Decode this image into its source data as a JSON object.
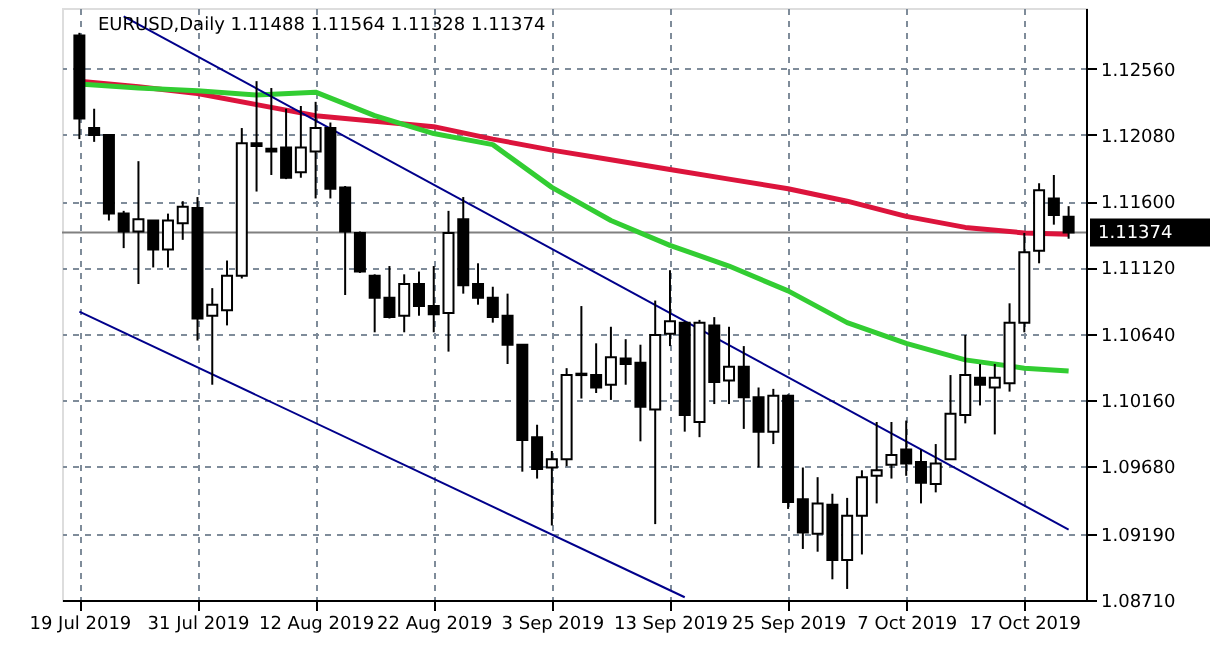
{
  "chart_data": {
    "type": "candlestick",
    "title": "EURUSD,Daily  1.11488 1.11564 1.11328 1.11374",
    "categories": [
      "19 Jul 2019",
      null,
      null,
      null,
      null,
      null,
      null,
      null,
      "31 Jul 2019",
      null,
      null,
      null,
      null,
      null,
      null,
      null,
      "12 Aug 2019",
      null,
      null,
      null,
      null,
      null,
      null,
      null,
      "22 Aug 2019",
      null,
      null,
      null,
      null,
      null,
      null,
      null,
      "3 Sep 2019",
      null,
      null,
      null,
      null,
      null,
      null,
      null,
      "13 Sep 2019",
      null,
      null,
      null,
      null,
      null,
      null,
      null,
      "25 Sep 2019",
      null,
      null,
      null,
      null,
      null,
      null,
      null,
      "7 Oct 2019",
      null,
      null,
      null,
      null,
      null,
      null,
      null,
      "17 Oct 2019",
      null,
      null,
      null
    ],
    "ohlc": [
      [
        1.128,
        1.1282,
        1.1205,
        1.122
      ],
      [
        1.1213,
        1.1227,
        1.1203,
        1.1208
      ],
      [
        1.1208,
        1.1208,
        1.1146,
        1.1151
      ],
      [
        1.1151,
        1.1153,
        1.1126,
        1.1138
      ],
      [
        1.1138,
        1.1189,
        1.11,
        1.1147
      ],
      [
        1.1146,
        1.1146,
        1.1112,
        1.1125
      ],
      [
        1.1125,
        1.1151,
        1.1112,
        1.1146
      ],
      [
        1.1144,
        1.116,
        1.1132,
        1.1156
      ],
      [
        1.1155,
        1.1163,
        1.1059,
        1.1075
      ],
      [
        1.1077,
        1.1097,
        1.1027,
        1.1085
      ],
      [
        1.1081,
        1.1117,
        1.107,
        1.1106
      ],
      [
        1.1106,
        1.1213,
        1.1104,
        1.1202
      ],
      [
        1.1202,
        1.1247,
        1.1167,
        1.12
      ],
      [
        1.1198,
        1.1242,
        1.1179,
        1.1196
      ],
      [
        1.1199,
        1.1227,
        1.1176,
        1.1177
      ],
      [
        1.1181,
        1.1229,
        1.1177,
        1.1199
      ],
      [
        1.1196,
        1.1232,
        1.1162,
        1.1213
      ],
      [
        1.1213,
        1.1217,
        1.1162,
        1.1169
      ],
      [
        1.117,
        1.1171,
        1.1092,
        1.1138
      ],
      [
        1.1137,
        1.1138,
        1.1108,
        1.1109
      ],
      [
        1.1106,
        1.1107,
        1.1065,
        1.109
      ],
      [
        1.109,
        1.1113,
        1.1075,
        1.1076
      ],
      [
        1.1077,
        1.1107,
        1.1065,
        1.11
      ],
      [
        1.11,
        1.1109,
        1.1077,
        1.1084
      ],
      [
        1.1084,
        1.1113,
        1.1065,
        1.1078
      ],
      [
        1.1079,
        1.1153,
        1.1051,
        1.1137
      ],
      [
        1.1147,
        1.1163,
        1.1093,
        1.1099
      ],
      [
        1.11,
        1.1115,
        1.1085,
        1.109
      ],
      [
        1.109,
        1.1098,
        1.1072,
        1.1076
      ],
      [
        1.1077,
        1.1093,
        1.1042,
        1.1056
      ],
      [
        1.1056,
        1.1056,
        1.0964,
        1.0987
      ],
      [
        1.0989,
        1.0998,
        1.0959,
        1.0966
      ],
      [
        1.0967,
        1.0979,
        1.0925,
        1.0973
      ],
      [
        1.0973,
        1.1039,
        1.0968,
        1.1034
      ],
      [
        1.1035,
        1.1084,
        1.1017,
        1.1034
      ],
      [
        1.1034,
        1.1057,
        1.1021,
        1.1025
      ],
      [
        1.1027,
        1.1069,
        1.1016,
        1.1047
      ],
      [
        1.1046,
        1.106,
        1.1027,
        1.1042
      ],
      [
        1.1043,
        1.1056,
        1.0986,
        1.1011
      ],
      [
        1.1009,
        1.1088,
        1.0926,
        1.1063
      ],
      [
        1.1064,
        1.111,
        1.1055,
        1.1073
      ],
      [
        1.1072,
        1.1073,
        1.0993,
        1.1005
      ],
      [
        1.1,
        1.1074,
        1.0989,
        1.1072
      ],
      [
        1.107,
        1.1076,
        1.1013,
        1.1029
      ],
      [
        1.103,
        1.1069,
        1.1013,
        1.104
      ],
      [
        1.104,
        1.1055,
        1.0995,
        1.1018
      ],
      [
        1.1018,
        1.1025,
        1.0967,
        1.0993
      ],
      [
        1.0993,
        1.1024,
        1.0984,
        1.1019
      ],
      [
        1.1019,
        1.102,
        1.0937,
        1.0942
      ],
      [
        1.0944,
        1.0967,
        1.0908,
        1.092
      ],
      [
        1.0919,
        1.096,
        1.0906,
        1.0941
      ],
      [
        1.094,
        1.0948,
        1.0886,
        1.09
      ],
      [
        1.09,
        1.0945,
        1.0879,
        1.0932
      ],
      [
        1.0932,
        1.0965,
        1.0904,
        1.096
      ],
      [
        1.0961,
        1.1,
        1.0941,
        1.0965
      ],
      [
        1.0969,
        1.1,
        1.0959,
        1.0976
      ],
      [
        1.098,
        1.1001,
        1.0961,
        1.097
      ],
      [
        1.0971,
        1.098,
        1.0941,
        1.0956
      ],
      [
        1.0955,
        1.0984,
        1.0949,
        1.097
      ],
      [
        1.0973,
        1.1034,
        1.0973,
        1.1006
      ],
      [
        1.1005,
        1.1063,
        1.0999,
        1.1034
      ],
      [
        1.1032,
        1.1042,
        1.1012,
        1.1027
      ],
      [
        1.1025,
        1.1042,
        1.0991,
        1.1032
      ],
      [
        1.1028,
        1.1086,
        1.1022,
        1.1072
      ],
      [
        1.1072,
        1.1137,
        1.1065,
        1.1123
      ],
      [
        1.1124,
        1.1173,
        1.1115,
        1.1168
      ],
      [
        1.1162,
        1.1179,
        1.1143,
        1.115
      ],
      [
        1.11488,
        1.11564,
        1.11328,
        1.11374
      ]
    ],
    "series": [
      {
        "type": "line",
        "color": "#dc143c",
        "values": [
          1.1247,
          null,
          null,
          null,
          1.1243,
          null,
          null,
          null,
          1.1238,
          null,
          null,
          null,
          1.123,
          null,
          null,
          null,
          1.1222,
          null,
          null,
          null,
          1.1218,
          null,
          null,
          null,
          1.1214,
          null,
          null,
          null,
          1.1205,
          null,
          null,
          null,
          1.1197,
          null,
          null,
          null,
          1.119,
          null,
          null,
          null,
          1.1183,
          null,
          null,
          null,
          1.1176,
          null,
          null,
          null,
          1.1169,
          null,
          null,
          null,
          1.116,
          null,
          null,
          null,
          1.1149,
          null,
          null,
          null,
          1.1141,
          null,
          null,
          null,
          1.1137,
          null,
          null,
          1.1136
        ]
      },
      {
        "type": "line",
        "color": "#32cd32",
        "values": [
          1.1245,
          null,
          null,
          null,
          1.1242,
          null,
          null,
          null,
          1.124,
          null,
          null,
          null,
          1.1237,
          null,
          null,
          null,
          1.1239,
          null,
          null,
          null,
          1.1222,
          null,
          null,
          null,
          1.1209,
          null,
          null,
          null,
          1.1201,
          null,
          null,
          null,
          1.117,
          null,
          null,
          null,
          1.1146,
          null,
          null,
          null,
          1.1128,
          null,
          null,
          null,
          1.1113,
          null,
          null,
          null,
          1.1095,
          null,
          null,
          null,
          1.1072,
          null,
          null,
          null,
          1.1057,
          null,
          null,
          null,
          1.1045,
          null,
          null,
          null,
          1.1039,
          null,
          null,
          1.1037
        ]
      },
      {
        "type": "line",
        "color": "#00008b",
        "values": [
          null,
          null,
          null,
          1.1294,
          null,
          null,
          null,
          null,
          null,
          null,
          null,
          null,
          null,
          null,
          null,
          null,
          null,
          null,
          null,
          null,
          null,
          null,
          null,
          null,
          null,
          null,
          null,
          null,
          null,
          null,
          null,
          null,
          null,
          null,
          null,
          null,
          null,
          null,
          null,
          null,
          null,
          null,
          null,
          null,
          null,
          null,
          null,
          null,
          null,
          null,
          null,
          null,
          null,
          null,
          null,
          null,
          null,
          null,
          null,
          null,
          null,
          null,
          null,
          null,
          null,
          null,
          null,
          1.0922
        ]
      },
      {
        "type": "line",
        "color": "#00008b",
        "values": [
          1.108,
          null,
          null,
          null,
          null,
          null,
          null,
          null,
          null,
          null,
          null,
          null,
          null,
          null,
          null,
          null,
          null,
          null,
          null,
          null,
          null,
          null,
          null,
          null,
          null,
          null,
          null,
          null,
          null,
          null,
          null,
          null,
          null,
          null,
          null,
          null,
          null,
          null,
          null,
          null,
          null,
          1.0873,
          null,
          null,
          null,
          null,
          null,
          null,
          null,
          null,
          null,
          null,
          null,
          null,
          null,
          null,
          null,
          null,
          null,
          null,
          null,
          null,
          null,
          null,
          null,
          null,
          null,
          null
        ]
      }
    ],
    "ylim": [
      1.0871,
      1.13
    ],
    "yticks": [
      {
        "value": 1.0871,
        "label": "1.08710"
      },
      {
        "value": 1.0919,
        "label": "1.09190"
      },
      {
        "value": 1.0968,
        "label": "1.09680"
      },
      {
        "value": 1.1016,
        "label": "1.10160"
      },
      {
        "value": 1.1064,
        "label": "1.10640"
      },
      {
        "value": 1.1112,
        "label": "1.11120"
      },
      {
        "value": 1.116,
        "label": "1.11600"
      },
      {
        "value": 1.1208,
        "label": "1.12080"
      },
      {
        "value": 1.1256,
        "label": "1.12560"
      }
    ],
    "ref_lines": [
      {
        "axis": "y",
        "value": 1.11374,
        "label": "1.11374",
        "color": "#808080"
      }
    ],
    "grid": true
  }
}
